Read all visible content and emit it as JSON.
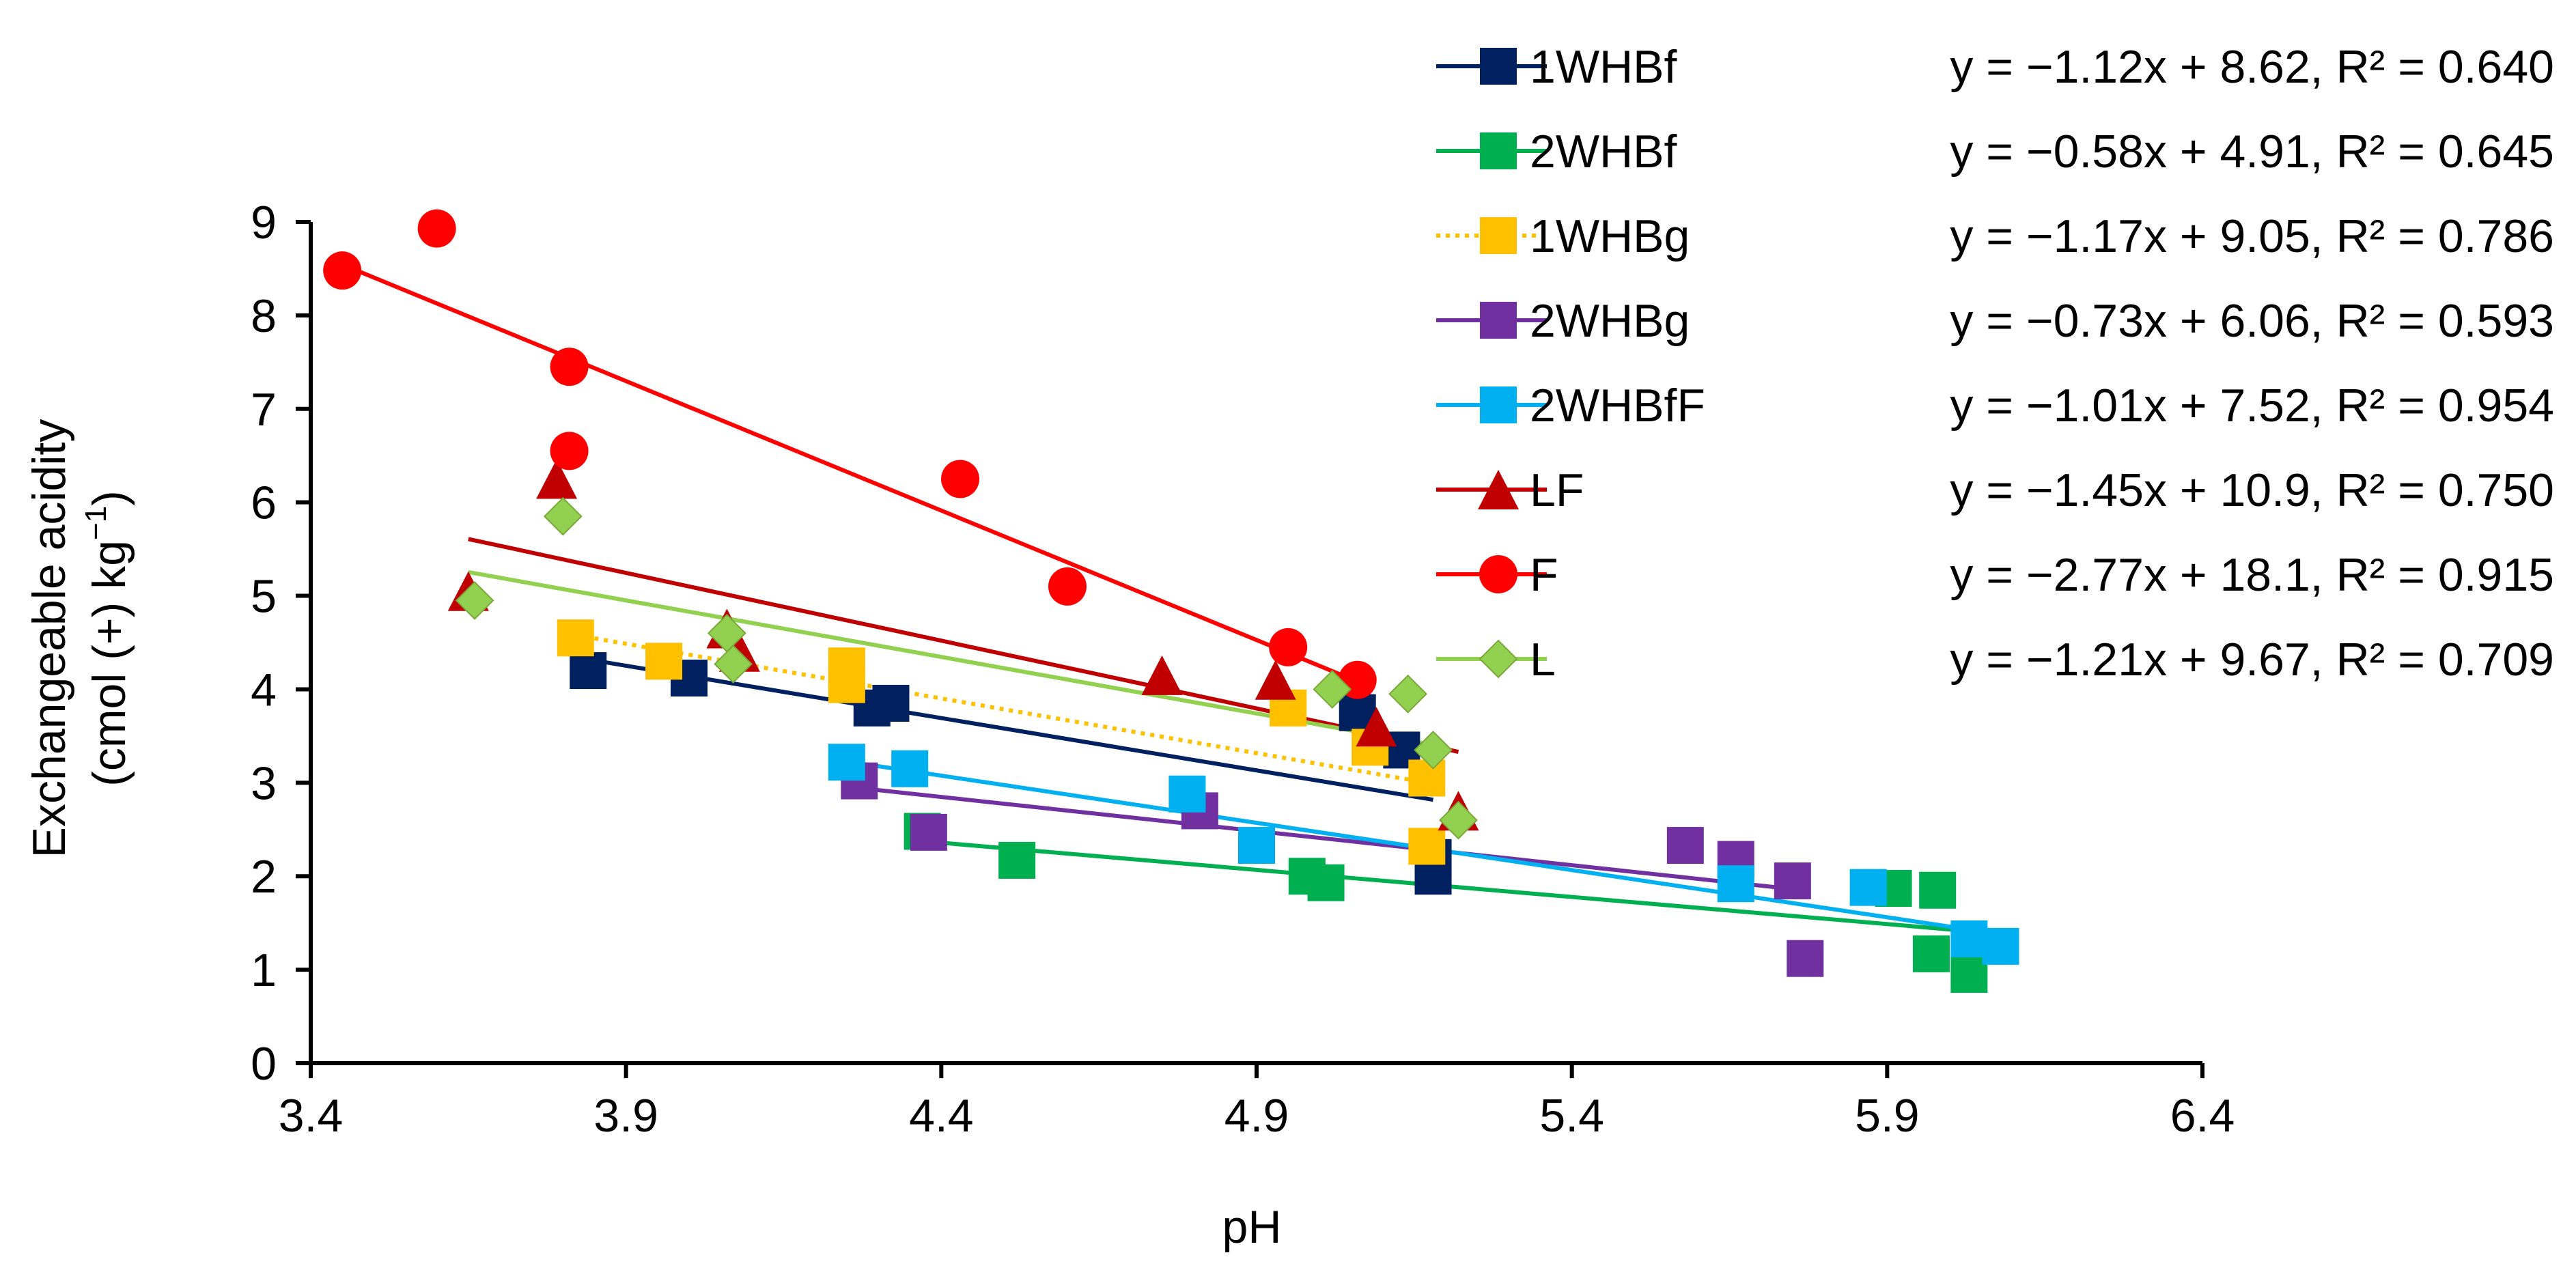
{
  "chart_data": {
    "type": "scatter",
    "title": "",
    "xlabel": "pH",
    "ylabel_line1": "Exchangeable acidity",
    "ylabel_line2_prefix": "(cmol (+) kg",
    "ylabel_line2_superscript": "−1",
    "ylabel_line2_suffix": ")",
    "xlim": [
      3.4,
      6.4
    ],
    "ylim": [
      0,
      9
    ],
    "x_ticks": [
      3.4,
      3.9,
      4.4,
      4.9,
      5.4,
      5.9,
      6.4
    ],
    "x_tick_labels": [
      "3.4",
      "3.9",
      "4.4",
      "4.9",
      "5.4",
      "5.9",
      "6.4"
    ],
    "y_ticks": [
      0,
      1,
      2,
      3,
      4,
      5,
      6,
      7,
      8,
      9
    ],
    "y_tick_labels": [
      "0",
      "1",
      "2",
      "3",
      "4",
      "5",
      "6",
      "7",
      "8",
      "9"
    ],
    "grid": false,
    "legend_position": "top-right",
    "series": [
      {
        "name": "1WHBf",
        "marker": "square",
        "color": "#002060",
        "line_style": "solid",
        "equation": "y = −1.12x + 8.62, R² = 0.640",
        "slope": -1.12,
        "intercept": 8.62,
        "fit_range": [
          3.83,
          5.18
        ],
        "points": [
          [
            3.84,
            4.2
          ],
          [
            4.0,
            4.12
          ],
          [
            4.29,
            3.8
          ],
          [
            4.32,
            3.85
          ],
          [
            5.06,
            3.75
          ],
          [
            5.13,
            3.35
          ],
          [
            5.18,
            2.2
          ],
          [
            5.18,
            2.0
          ]
        ]
      },
      {
        "name": "2WHBf",
        "marker": "square",
        "color": "#00B050",
        "line_style": "solid",
        "equation": "y = −0.58x + 4.91, R² = 0.645",
        "slope": -0.58,
        "intercept": 4.91,
        "fit_range": [
          4.37,
          6.03
        ],
        "points": [
          [
            4.37,
            2.48
          ],
          [
            4.52,
            2.17
          ],
          [
            4.98,
            2.0
          ],
          [
            5.01,
            1.93
          ],
          [
            5.91,
            1.87
          ],
          [
            5.98,
            1.85
          ],
          [
            5.97,
            1.17
          ],
          [
            6.03,
            0.95
          ]
        ]
      },
      {
        "name": "1WHBg",
        "marker": "square",
        "color": "#FFC000",
        "line_style": "dotted",
        "equation": "y = −1.17x + 9.05, R² = 0.786",
        "slope": -1.17,
        "intercept": 9.05,
        "fit_range": [
          3.82,
          5.18
        ],
        "points": [
          [
            3.82,
            4.55
          ],
          [
            3.96,
            4.3
          ],
          [
            4.25,
            4.25
          ],
          [
            4.25,
            4.05
          ],
          [
            4.95,
            3.8
          ],
          [
            5.08,
            3.38
          ],
          [
            5.17,
            3.05
          ],
          [
            5.17,
            2.32
          ]
        ]
      },
      {
        "name": "2WHBg",
        "marker": "square",
        "color": "#7030A0",
        "line_style": "solid",
        "equation": "y = −0.73x + 6.06, R² = 0.593",
        "slope": -0.73,
        "intercept": 6.06,
        "fit_range": [
          4.27,
          5.75
        ],
        "points": [
          [
            4.27,
            3.02
          ],
          [
            4.38,
            2.47
          ],
          [
            4.81,
            2.7
          ],
          [
            5.58,
            2.33
          ],
          [
            5.66,
            2.18
          ],
          [
            5.75,
            1.95
          ],
          [
            5.77,
            1.12
          ]
        ]
      },
      {
        "name": "2WHBfF",
        "marker": "square",
        "color": "#00B0F0",
        "line_style": "solid",
        "equation": "y = −1.01x + 7.52, R² = 0.954",
        "slope": -1.01,
        "intercept": 7.52,
        "fit_range": [
          4.25,
          6.08
        ],
        "points": [
          [
            4.25,
            3.22
          ],
          [
            4.35,
            3.15
          ],
          [
            4.79,
            2.88
          ],
          [
            4.9,
            2.33
          ],
          [
            5.66,
            1.92
          ],
          [
            5.87,
            1.88
          ],
          [
            6.03,
            1.33
          ],
          [
            6.08,
            1.25
          ]
        ]
      },
      {
        "name": "LF",
        "marker": "triangle",
        "color": "#C00000",
        "line_style": "solid",
        "equation": "y = −1.45x + 10.9, R² = 0.750",
        "slope": -1.45,
        "intercept": 10.9,
        "fit_range": [
          3.65,
          5.22
        ],
        "points": [
          [
            3.65,
            5.05
          ],
          [
            3.79,
            6.25
          ],
          [
            4.06,
            4.65
          ],
          [
            4.08,
            4.4
          ],
          [
            4.75,
            4.15
          ],
          [
            4.93,
            4.1
          ],
          [
            5.09,
            3.6
          ],
          [
            5.22,
            2.7
          ]
        ]
      },
      {
        "name": "F",
        "marker": "circle",
        "color": "#FF0000",
        "line_style": "solid",
        "equation": "y = −2.77x + 18.1, R² = 0.915",
        "slope": -2.77,
        "intercept": 18.1,
        "fit_range": [
          3.45,
          5.06
        ],
        "points": [
          [
            3.45,
            8.48
          ],
          [
            3.6,
            8.93
          ],
          [
            3.81,
            7.45
          ],
          [
            3.81,
            6.55
          ],
          [
            4.43,
            6.25
          ],
          [
            4.6,
            5.1
          ],
          [
            4.95,
            4.45
          ],
          [
            5.06,
            4.1
          ]
        ]
      },
      {
        "name": "L",
        "marker": "diamond",
        "color": "#92D050",
        "line_style": "solid",
        "equation": "y = −1.21x + 9.67, R² = 0.709",
        "slope": -1.21,
        "intercept": 9.67,
        "fit_range": [
          3.65,
          5.2
        ],
        "points": [
          [
            3.66,
            4.95
          ],
          [
            3.8,
            5.85
          ],
          [
            4.06,
            4.6
          ],
          [
            4.07,
            4.27
          ],
          [
            5.02,
            4.0
          ],
          [
            5.14,
            3.95
          ],
          [
            5.18,
            3.35
          ],
          [
            5.22,
            2.6
          ]
        ]
      }
    ]
  }
}
